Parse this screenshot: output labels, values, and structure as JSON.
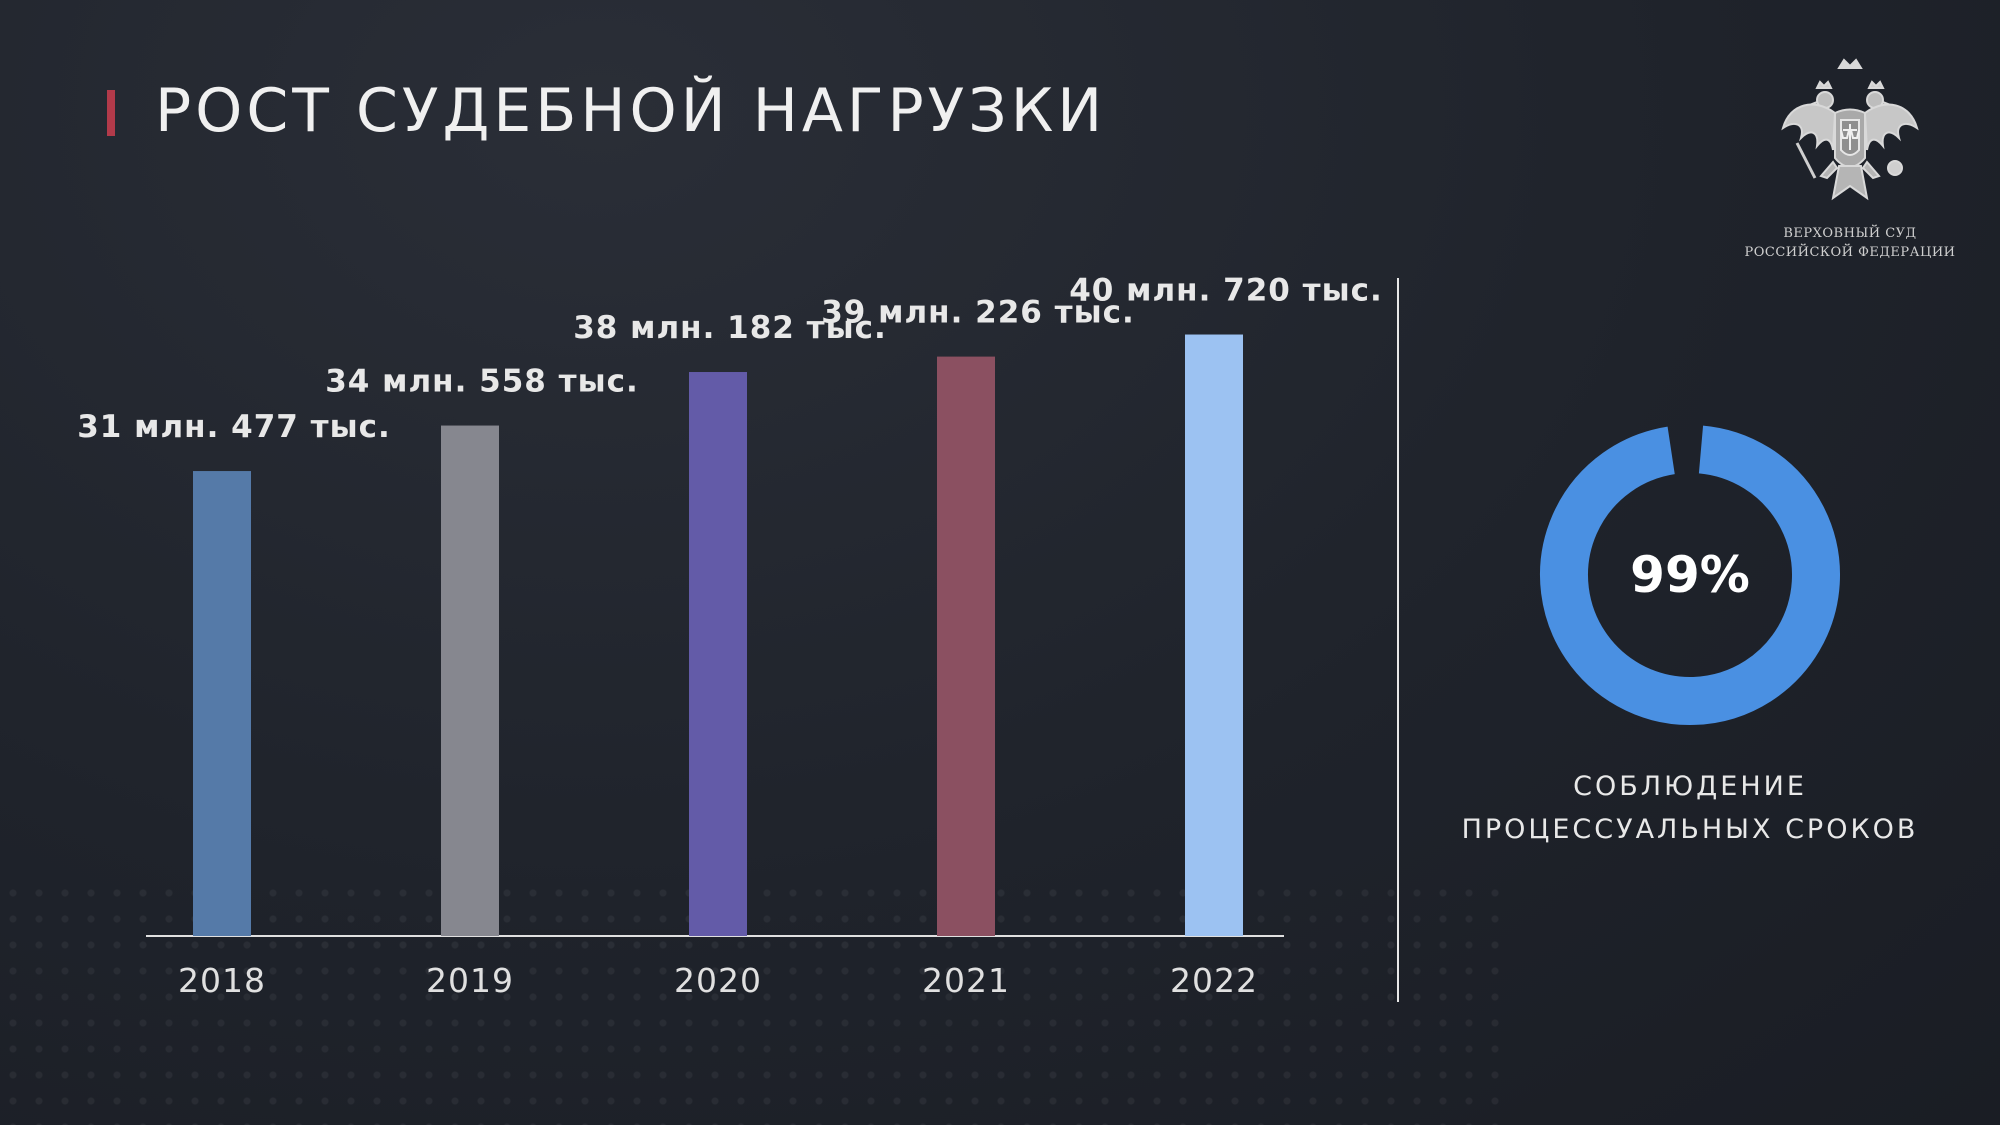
{
  "slide": {
    "title": "РОСТ СУДЕБНОЙ НАГРУЗКИ",
    "accent_color": "#b23a4a"
  },
  "emblem": {
    "icon": "double-headed-eagle-emblem",
    "caption_line1": "ВЕРХОВНЫЙ СУД",
    "caption_line2": "РОССИЙСКОЙ ФЕДЕРАЦИИ"
  },
  "chart_data": [
    {
      "type": "bar",
      "categories": [
        "2018",
        "2019",
        "2020",
        "2021",
        "2022"
      ],
      "values": [
        31.477,
        34.558,
        38.182,
        39.226,
        40.72
      ],
      "value_unit": "млн.",
      "data_labels": [
        "31 млн. 477 тыс.",
        "34 млн. 558 тыс.",
        "38 млн. 182 тыс.",
        "39 млн. 226 тыс.",
        "40 млн. 720 тыс."
      ],
      "bar_colors": [
        "#557aa8",
        "#86878f",
        "#635ba8",
        "#8b5061",
        "#9cc2f2"
      ],
      "title": "",
      "xlabel": "",
      "ylabel": "",
      "ylim": [
        0,
        41.5
      ],
      "grid": false,
      "legend": "none"
    },
    {
      "type": "pie",
      "style": "donut",
      "values": [
        99,
        1
      ],
      "label": "99%",
      "caption_line1": "СОБЛЮДЕНИЕ",
      "caption_line2": "ПРОЦЕССУАЛЬНЫХ СРОКОВ",
      "ring_color": "#4a90e2"
    }
  ]
}
